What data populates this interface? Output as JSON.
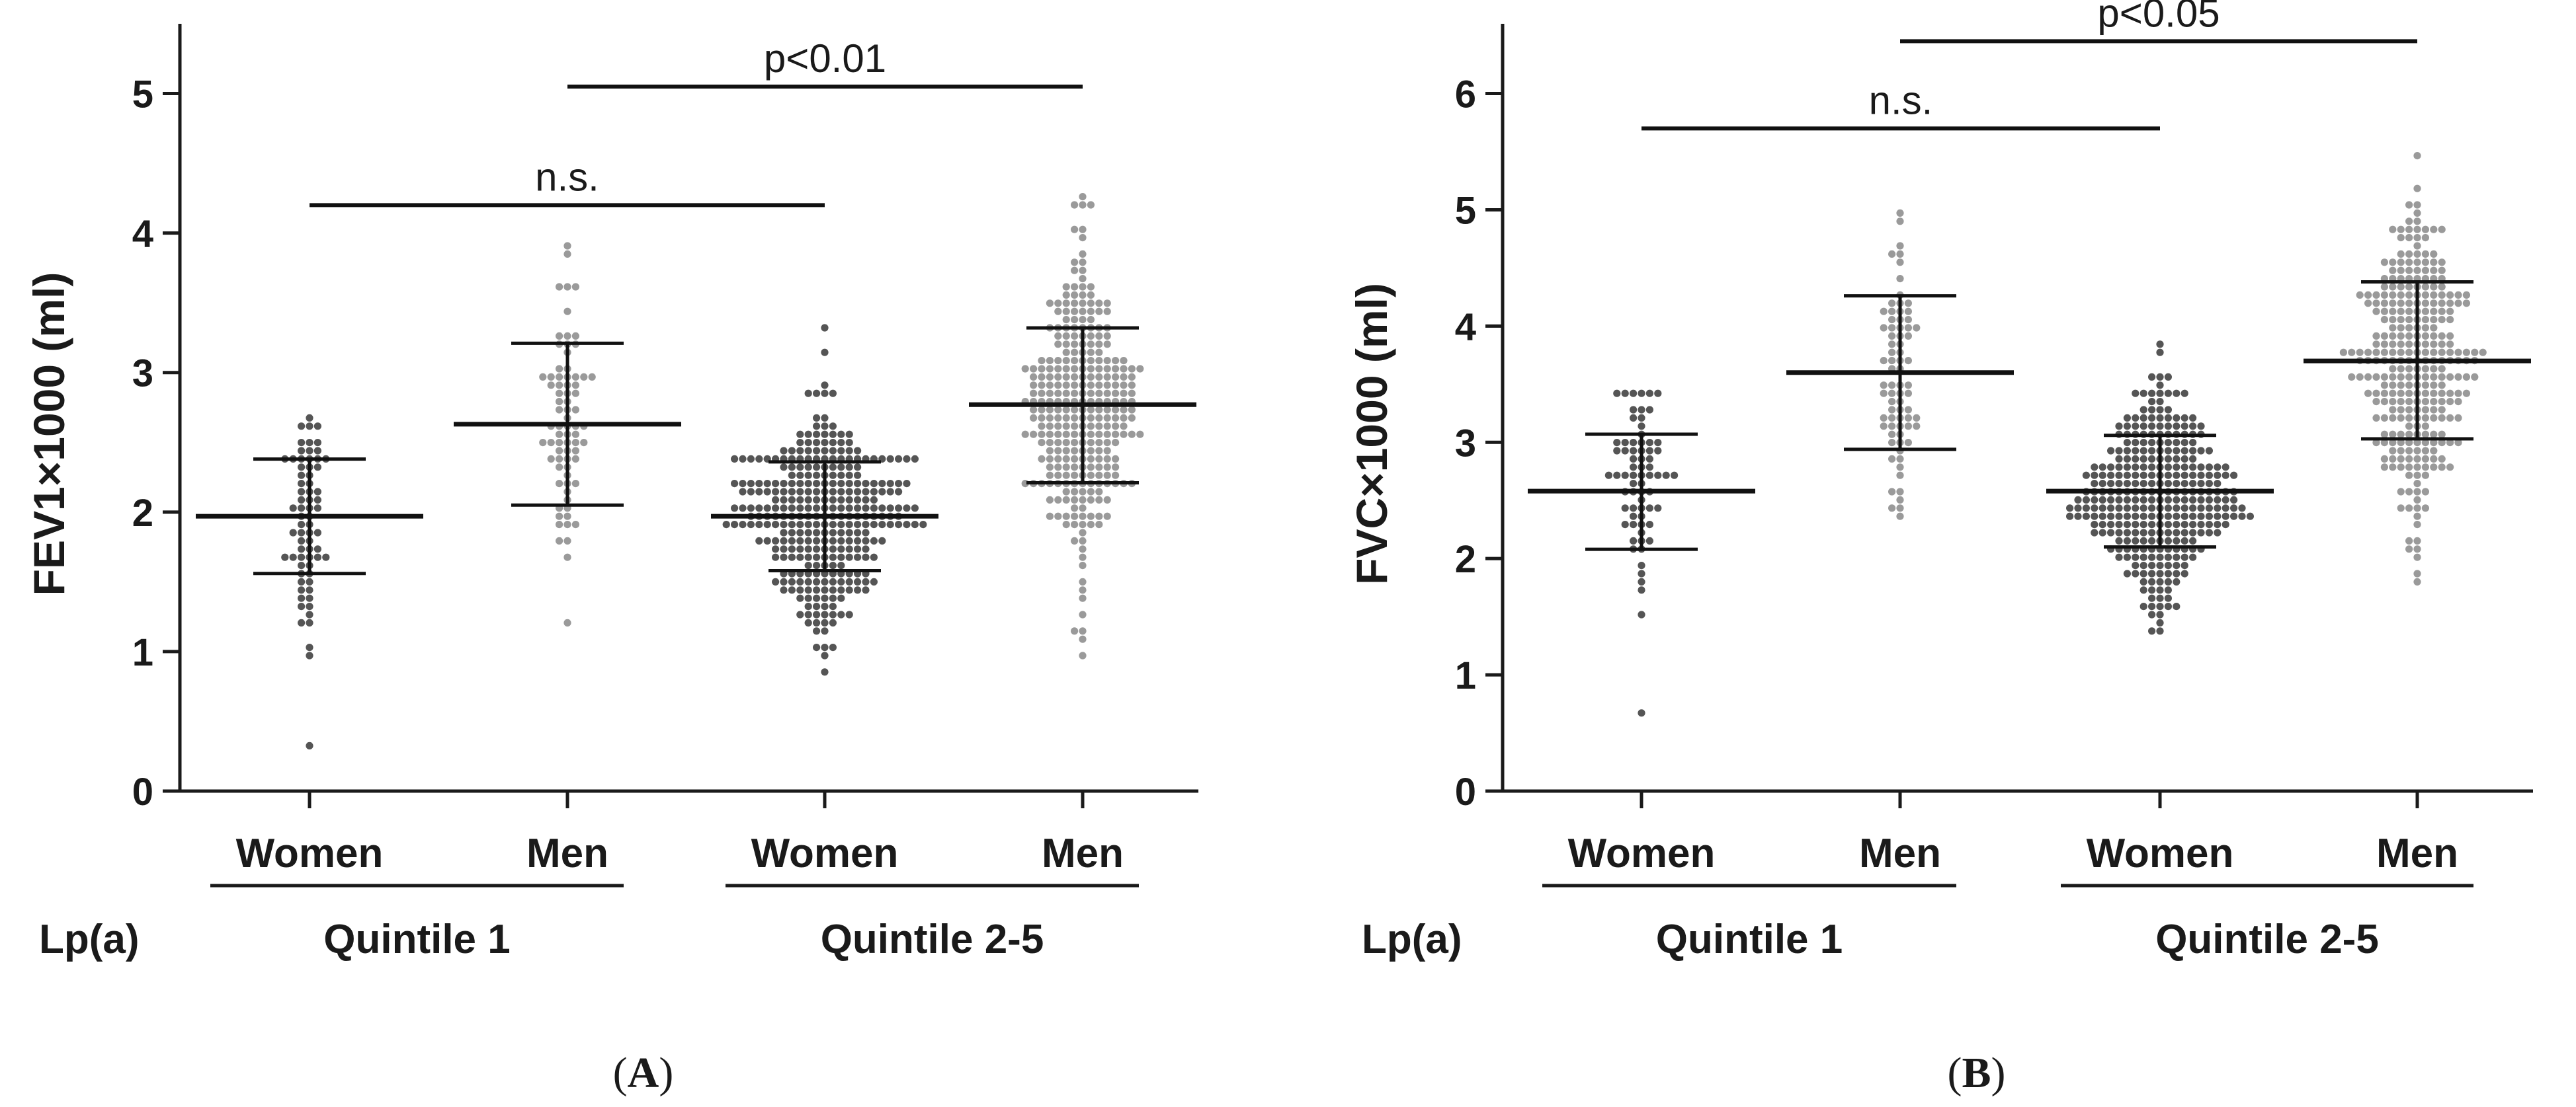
{
  "chart_data": [
    {
      "type": "scatter",
      "panel_label": "A",
      "ylabel": "FEV1×1000 (ml)",
      "ylim": [
        0,
        5.5
      ],
      "yticks": [
        "0",
        "1",
        "2",
        "3",
        "4",
        "5"
      ],
      "categories": [
        "Women",
        "Men",
        "Women",
        "Men"
      ],
      "row_label": "Lp(a)",
      "groups": [
        "Quintile 1",
        "Quintile 2-5"
      ],
      "series": [
        {
          "name": "Quintile 1 Women",
          "color": "#555555",
          "n": 70,
          "mean": 1.97,
          "sd_low": 1.56,
          "sd_high": 2.38,
          "min": 0.32,
          "max": 2.68
        },
        {
          "name": "Quintile 1 Men",
          "color": "#9a9a9a",
          "n": 75,
          "mean": 2.63,
          "sd_low": 2.05,
          "sd_high": 3.21,
          "min": 1.22,
          "max": 3.88
        },
        {
          "name": "Quintile 2-5 Women",
          "color": "#555555",
          "n": 320,
          "mean": 1.97,
          "sd_low": 1.58,
          "sd_high": 2.36,
          "min": 0.85,
          "max": 3.32
        },
        {
          "name": "Quintile 2-5 Men",
          "color": "#9a9a9a",
          "n": 300,
          "mean": 2.77,
          "sd_low": 2.21,
          "sd_high": 3.32,
          "min": 0.98,
          "max": 4.25
        }
      ],
      "comparisons": [
        {
          "label": "n.s.",
          "from": 0,
          "to": 2,
          "y": 4.2
        },
        {
          "label": "p<0.01",
          "from": 1,
          "to": 3,
          "y": 5.05
        }
      ]
    },
    {
      "type": "scatter",
      "panel_label": "B",
      "ylabel": "FVC×1000 (ml)",
      "ylim": [
        0,
        6.6
      ],
      "yticks": [
        "0",
        "1",
        "2",
        "3",
        "4",
        "5",
        "6"
      ],
      "categories": [
        "Women",
        "Men",
        "Women",
        "Men"
      ],
      "row_label": "Lp(a)",
      "groups": [
        "Quintile 1",
        "Quintile 2-5"
      ],
      "series": [
        {
          "name": "Quintile 1 Women",
          "color": "#555555",
          "n": 70,
          "mean": 2.58,
          "sd_low": 2.08,
          "sd_high": 3.07,
          "min": 0.7,
          "max": 3.45
        },
        {
          "name": "Quintile 1 Men",
          "color": "#9a9a9a",
          "n": 75,
          "mean": 3.6,
          "sd_low": 2.94,
          "sd_high": 4.26,
          "min": 2.35,
          "max": 4.97
        },
        {
          "name": "Quintile 2-5 Women",
          "color": "#555555",
          "n": 320,
          "mean": 2.58,
          "sd_low": 2.1,
          "sd_high": 3.06,
          "min": 1.35,
          "max": 3.82
        },
        {
          "name": "Quintile 2-5 Men",
          "color": "#9a9a9a",
          "n": 300,
          "mean": 3.7,
          "sd_low": 3.03,
          "sd_high": 4.38,
          "min": 1.78,
          "max": 5.5
        }
      ],
      "comparisons": [
        {
          "label": "n.s.",
          "from": 0,
          "to": 2,
          "y": 5.7
        },
        {
          "label": "p<0.05",
          "from": 1,
          "to": 3,
          "y": 6.45
        }
      ]
    }
  ]
}
